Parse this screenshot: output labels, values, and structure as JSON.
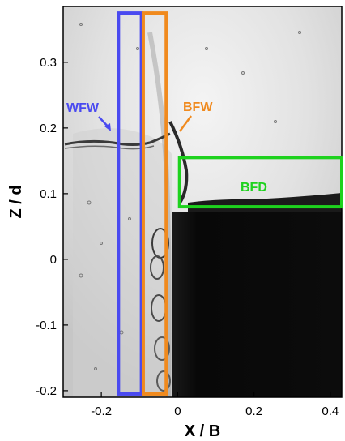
{
  "figure": {
    "x_axis": {
      "label": "X / B",
      "ticks": [
        {
          "value": -0.2,
          "text": "-0.2"
        },
        {
          "value": 0,
          "text": "0"
        },
        {
          "value": 0.2,
          "text": "0.2"
        },
        {
          "value": 0.4,
          "text": "0.4"
        }
      ],
      "range": [
        -0.3,
        0.43
      ]
    },
    "y_axis": {
      "label": "Z / d",
      "ticks": [
        {
          "value": 0.3,
          "text": "0.3"
        },
        {
          "value": 0.2,
          "text": "0.2"
        },
        {
          "value": 0.1,
          "text": "0.1"
        },
        {
          "value": 0,
          "text": "0"
        },
        {
          "value": -0.1,
          "text": "-0.1"
        },
        {
          "value": -0.2,
          "text": "-0.2"
        }
      ],
      "range": [
        -0.21,
        0.385
      ]
    },
    "regions": [
      {
        "label": "WFW",
        "color": "#4a4af0",
        "x": [
          -0.155,
          -0.095
        ],
        "z": [
          -0.205,
          0.375
        ]
      },
      {
        "label": "BFW",
        "color": "#f08a1e",
        "x": [
          -0.09,
          -0.03
        ],
        "z": [
          -0.205,
          0.375
        ]
      },
      {
        "label": "BFD",
        "color": "#1ed21e",
        "x": [
          0.005,
          0.43
        ],
        "z": [
          0.08,
          0.155
        ]
      }
    ],
    "colors": {
      "background": "#d8d8d8",
      "body": "#0a0a0a",
      "wfw": "#4a4af0",
      "bfw": "#f08a1e",
      "bfd": "#1ed21e"
    }
  }
}
